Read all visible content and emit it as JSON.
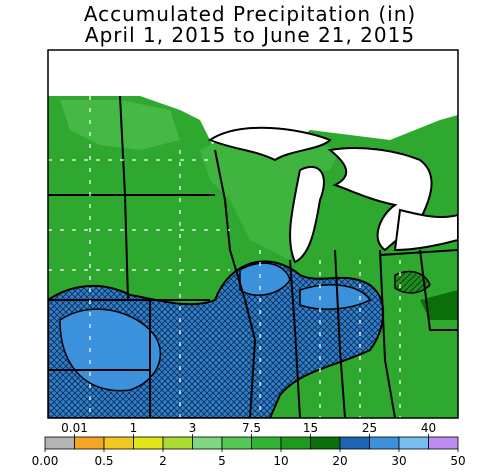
{
  "title": {
    "line1": "Accumulated Precipitation (in)",
    "line2": "April 1, 2015 to June 21, 2015"
  },
  "colorbar": {
    "labels": [
      "0.00",
      "0.01",
      "0.5",
      "1",
      "2",
      "3",
      "5",
      "7.5",
      "10",
      "15",
      "20",
      "25",
      "30",
      "40",
      "50"
    ],
    "colors": [
      "#b4b4b4",
      "#f5a623",
      "#f0c81e",
      "#e1e619",
      "#aadc32",
      "#7fd77f",
      "#55c855",
      "#32b432",
      "#1e9b1e",
      "#0a6e0a",
      "#1e64b4",
      "#3c91dc",
      "#78bef0",
      "#be8cf0"
    ]
  }
}
